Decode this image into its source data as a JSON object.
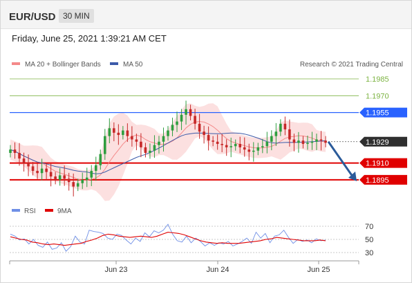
{
  "header": {
    "symbol": "EUR/USD",
    "timeframe": "30 MIN"
  },
  "datetime": "Friday, June 25, 2021 1:39:21 AM CET",
  "credit": "Research © 2021 Trading Central",
  "colors": {
    "resistance": "#7cb342",
    "pivot_line": "#2962ff",
    "support": "#e00000",
    "current": "#2f2f2f",
    "candle_up": "#2e9e3f",
    "candle_down": "#c62828",
    "bands": "#fbd5d5",
    "ma20": "#f48a8a",
    "ma50": "#3d5ba9",
    "rsi": "#6f8fe6",
    "rsi_ma": "#e00000",
    "arrow": "#2b5b9a"
  },
  "chart_data": [
    {
      "type": "candlestick",
      "title": "",
      "legend": [
        {
          "name": "MA 20 + Bollinger Bands",
          "color": "#f48a8a"
        },
        {
          "name": "MA 50",
          "color": "#3d5ba9"
        }
      ],
      "x_ticks": [
        "Jun 23",
        "Jun 24",
        "Jun 25"
      ],
      "ylim": [
        1.188,
        1.1995
      ],
      "levels": [
        {
          "value": "1.1985",
          "kind": "resistance"
        },
        {
          "value": "1.1970",
          "kind": "resistance"
        },
        {
          "value": "1.1955",
          "kind": "pivot"
        },
        {
          "value": "1.1929",
          "kind": "current"
        },
        {
          "value": "1.1910",
          "kind": "support"
        },
        {
          "value": "1.1895",
          "kind": "support"
        }
      ],
      "forecast": {
        "direction": "down",
        "target": 1.1895
      },
      "close": [
        1.1922,
        1.1919,
        1.1914,
        1.191,
        1.1907,
        1.1903,
        1.1901,
        1.1905,
        1.1902,
        1.1898,
        1.1895,
        1.1899,
        1.1896,
        1.1893,
        1.1889,
        1.1892,
        1.1895,
        1.1897,
        1.1903,
        1.1908,
        1.1918,
        1.1934,
        1.1941,
        1.1937,
        1.1935,
        1.1939,
        1.1934,
        1.1931,
        1.1929,
        1.1924,
        1.1919,
        1.1921,
        1.1926,
        1.1929,
        1.1934,
        1.1939,
        1.1944,
        1.1947,
        1.1953,
        1.1958,
        1.1952,
        1.1945,
        1.1938,
        1.1935,
        1.193,
        1.1929,
        1.1927,
        1.1926,
        1.1924,
        1.1925,
        1.1927,
        1.1924,
        1.1922,
        1.192,
        1.1921,
        1.1924,
        1.1925,
        1.1929,
        1.1934,
        1.1938,
        1.1945,
        1.194,
        1.1931,
        1.1928,
        1.193,
        1.1927,
        1.1928,
        1.1929,
        1.1931,
        1.193,
        1.1928
      ]
    },
    {
      "type": "line",
      "title": "",
      "legend": [
        {
          "name": "RSI",
          "color": "#6f8fe6"
        },
        {
          "name": "9MA",
          "color": "#e00000"
        }
      ],
      "y_ticks": [
        70,
        50,
        30
      ],
      "ylim": [
        20,
        80
      ],
      "series": [
        {
          "name": "RSI",
          "values": [
            58,
            55,
            49,
            51,
            43,
            50,
            41,
            38,
            46,
            35,
            37,
            45,
            32,
            39,
            55,
            46,
            43,
            64,
            62,
            61,
            59,
            52,
            50,
            58,
            56,
            49,
            43,
            52,
            47,
            60,
            54,
            63,
            60,
            64,
            73,
            58,
            48,
            46,
            55,
            45,
            52,
            47,
            40,
            45,
            41,
            45,
            43,
            47,
            40,
            43,
            47,
            52,
            44,
            61,
            52,
            59,
            45,
            55,
            57,
            64,
            53,
            44,
            50,
            47,
            49,
            45,
            51,
            48,
            49
          ]
        },
        {
          "name": "9MA",
          "values": [
            54,
            52,
            50,
            49,
            46,
            45,
            43,
            42,
            43,
            42,
            41,
            42,
            43,
            44,
            47,
            49,
            52,
            56,
            58,
            57,
            55,
            54,
            53,
            54,
            55,
            54,
            53,
            55,
            58,
            61,
            60,
            59,
            57,
            54,
            51,
            48,
            46,
            45,
            44,
            45,
            44,
            44,
            44,
            45,
            46,
            47,
            48,
            50,
            51,
            53,
            52,
            51,
            50,
            49,
            48,
            48,
            48,
            49,
            48
          ]
        }
      ]
    }
  ]
}
